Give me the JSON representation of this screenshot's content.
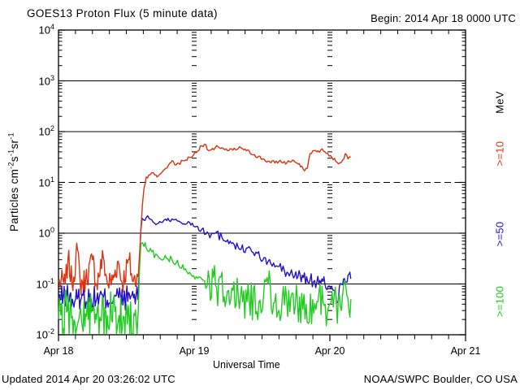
{
  "header": {
    "title": "GOES13 Proton Flux (5 minute data)",
    "begin": "Begin: 2014 Apr 18 0000 UTC"
  },
  "footer": {
    "updated": "Updated 2014 Apr 20 03:26:02 UTC",
    "source": "NOAA/SWPC Boulder, CO USA"
  },
  "colors": {
    "red": "#dd3311",
    "blue": "#2212cc",
    "green": "#21cc21",
    "axis": "#000000",
    "background": "#ffffff"
  },
  "chart_data": {
    "type": "line",
    "title": "GOES13 Proton Flux (5 minute data)",
    "xlabel": "Universal Time",
    "ylabel": "Particles cm-2 s-1 sr-1",
    "x_axis": {
      "label": "Universal Time",
      "start": "2014 Apr 18 0000 UTC",
      "range_days": [
        0,
        3
      ],
      "day_labels": [
        "Apr 18",
        "Apr 19",
        "Apr 20",
        "Apr 21"
      ],
      "minor_tick_hours": 3
    },
    "y_axis": {
      "scale": "log",
      "limits": [
        0.01,
        10000
      ],
      "exponents": [
        4,
        3,
        2,
        1,
        0,
        -1,
        -2
      ],
      "base": "10",
      "label_parts": [
        {
          "text": "Particles  cm",
          "sup": "-2"
        },
        {
          "text": "s",
          "sup": "-1"
        },
        {
          "text": "sr",
          "sup": "-1"
        }
      ],
      "unit_right": "MeV"
    },
    "gridlines": {
      "solid": [
        1000,
        100,
        1,
        0.1
      ],
      "dashed": [
        10
      ]
    },
    "series": [
      {
        "name": "protons >=10 MeV",
        "label": ">=10",
        "color": "#dd3311",
        "seed": 7,
        "zorder": 3,
        "segments": [
          {
            "amp": 0.26,
            "step": 0.006,
            "pts": [
              [
                0,
                0.11
              ],
              [
                0.05,
                0.1
              ],
              [
                0.07,
                0.32
              ],
              [
                0.1,
                0.1
              ],
              [
                0.14,
                0.48
              ],
              [
                0.16,
                0.1
              ],
              [
                0.2,
                0.12
              ],
              [
                0.25,
                0.3
              ],
              [
                0.28,
                0.1
              ],
              [
                0.33,
                0.34
              ],
              [
                0.36,
                0.1
              ],
              [
                0.4,
                0.12
              ],
              [
                0.44,
                0.28
              ],
              [
                0.47,
                0.1
              ],
              [
                0.52,
                0.3
              ],
              [
                0.55,
                0.11
              ],
              [
                0.585,
                0.14
              ]
            ]
          },
          {
            "amp": 0.04,
            "step": 0.01,
            "pts": [
              [
                0.588,
                0.15
              ],
              [
                0.6,
                0.5
              ],
              [
                0.61,
                1.6
              ],
              [
                0.62,
                4
              ],
              [
                0.63,
                7.5
              ],
              [
                0.64,
                10
              ],
              [
                0.647,
                12.8
              ],
              [
                0.665,
                14
              ],
              [
                0.687,
                15.5
              ],
              [
                0.71,
                14
              ],
              [
                0.726,
                12.8
              ],
              [
                0.746,
                14.5
              ],
              [
                0.766,
                16.4
              ],
              [
                0.79,
                19
              ],
              [
                0.807,
                21
              ],
              [
                0.82,
                24
              ],
              [
                0.836,
                26.7
              ],
              [
                0.856,
                22.4
              ],
              [
                0.886,
                23.9
              ],
              [
                0.926,
                26.7
              ],
              [
                0.966,
                31
              ],
              [
                1.016,
                38.5
              ],
              [
                1.046,
                52
              ],
              [
                1.076,
                56
              ],
              [
                1.106,
                42
              ],
              [
                1.145,
                44
              ],
              [
                1.175,
                51
              ],
              [
                1.205,
                48
              ],
              [
                1.246,
                42
              ],
              [
                1.305,
                44
              ],
              [
                1.345,
                48
              ],
              [
                1.385,
                42
              ],
              [
                1.445,
                35
              ],
              [
                1.505,
                29
              ],
              [
                1.565,
                24.4
              ],
              [
                1.625,
                26
              ],
              [
                1.684,
                24.4
              ],
              [
                1.725,
                27.5
              ],
              [
                1.765,
                23
              ],
              [
                1.804,
                18
              ],
              [
                1.834,
                19
              ],
              [
                1.854,
                37
              ],
              [
                1.874,
                42
              ],
              [
                1.904,
                40
              ],
              [
                1.934,
                44
              ],
              [
                1.964,
                40
              ],
              [
                1.994,
                33
              ],
              [
                2.014,
                31.6
              ],
              [
                2.044,
                26
              ],
              [
                2.074,
                24.4
              ],
              [
                2.094,
                27.5
              ],
              [
                2.114,
                37
              ],
              [
                2.134,
                29
              ],
              [
                2.154,
                31.6
              ]
            ]
          }
        ]
      },
      {
        "name": "protons >=50 MeV",
        "label": ">=50",
        "color": "#2212cc",
        "seed": 13,
        "zorder": 1,
        "segments": [
          {
            "amp": 0.24,
            "step": 0.006,
            "pts": [
              [
                0,
                0.05
              ],
              [
                0.06,
                0.06
              ],
              [
                0.12,
                0.045
              ],
              [
                0.18,
                0.06
              ],
              [
                0.24,
                0.05
              ],
              [
                0.3,
                0.055
              ],
              [
                0.36,
                0.048
              ],
              [
                0.42,
                0.058
              ],
              [
                0.48,
                0.05
              ],
              [
                0.54,
                0.06
              ],
              [
                0.585,
                0.05
              ]
            ]
          },
          {
            "amp": 0.05,
            "step": 0.01,
            "pts": [
              [
                0.588,
                0.06
              ],
              [
                0.597,
                0.3
              ],
              [
                0.607,
                1.2
              ],
              [
                0.617,
                1.96
              ],
              [
                0.63,
                1.8
              ],
              [
                0.645,
                2.0
              ],
              [
                0.657,
                2.2
              ],
              [
                0.672,
                1.9
              ],
              [
                0.687,
                1.84
              ],
              [
                0.71,
                1.55
              ],
              [
                0.726,
                1.53
              ],
              [
                0.746,
                1.7
              ],
              [
                0.766,
                1.63
              ],
              [
                0.79,
                1.9
              ],
              [
                0.807,
                1.96
              ],
              [
                0.826,
                1.7
              ],
              [
                0.846,
                1.84
              ],
              [
                0.886,
                1.73
              ],
              [
                0.926,
                1.53
              ],
              [
                0.966,
                1.63
              ],
              [
                1.016,
                1.36
              ]
            ]
          },
          {
            "amp": 0.09,
            "step": 0.01,
            "pts": [
              [
                1.016,
                1.36
              ],
              [
                1.056,
                1.2
              ],
              [
                1.096,
                1.06
              ],
              [
                1.125,
                0.94
              ],
              [
                1.155,
                1.0
              ],
              [
                1.205,
                0.83
              ],
              [
                1.246,
                0.74
              ],
              [
                1.285,
                0.65
              ],
              [
                1.345,
                0.48
              ],
              [
                1.385,
                0.51
              ],
              [
                1.425,
                0.43
              ],
              [
                1.465,
                0.4
              ],
              [
                1.505,
                0.29
              ],
              [
                1.545,
                0.28
              ],
              [
                1.565,
                0.25
              ],
              [
                1.625,
                0.22
              ],
              [
                1.665,
                0.18
              ]
            ]
          },
          {
            "amp": 0.15,
            "step": 0.008,
            "pts": [
              [
                1.665,
                0.18
              ],
              [
                1.684,
                0.17
              ],
              [
                1.725,
                0.15
              ],
              [
                1.765,
                0.14
              ],
              [
                1.804,
                0.134
              ],
              [
                1.854,
                0.118
              ],
              [
                1.904,
                0.11
              ],
              [
                1.934,
                0.104
              ],
              [
                1.964,
                0.097
              ],
              [
                1.994,
                0.092
              ],
              [
                2.014,
                0.09
              ],
              [
                2.035,
                0.072
              ],
              [
                2.05,
                0.042
              ],
              [
                2.07,
                0.09
              ],
              [
                2.094,
                0.097
              ],
              [
                2.114,
                0.11
              ],
              [
                2.134,
                0.15
              ],
              [
                2.154,
                0.126
              ]
            ]
          }
        ]
      },
      {
        "name": "protons >=100 MeV",
        "label": ">=100",
        "color": "#21cc21",
        "seed": 29,
        "zorder": 2,
        "segments": [
          {
            "amp": 0.5,
            "step": 0.006,
            "pts": [
              [
                0,
                0.02
              ],
              [
                0.06,
                0.028
              ],
              [
                0.12,
                0.018
              ],
              [
                0.2,
                0.026
              ],
              [
                0.28,
                0.02
              ],
              [
                0.36,
                0.024
              ],
              [
                0.44,
                0.019
              ],
              [
                0.52,
                0.024
              ],
              [
                0.585,
                0.022
              ]
            ]
          },
          {
            "amp": 0.1,
            "step": 0.01,
            "pts": [
              [
                0.588,
                0.03
              ],
              [
                0.597,
                0.2
              ],
              [
                0.607,
                0.61
              ],
              [
                0.63,
                0.55
              ],
              [
                0.647,
                0.51
              ],
              [
                0.687,
                0.43
              ],
              [
                0.726,
                0.375
              ],
              [
                0.766,
                0.295
              ],
              [
                0.807,
                0.31
              ],
              [
                0.846,
                0.26
              ],
              [
                0.886,
                0.23
              ],
              [
                0.926,
                0.19
              ],
              [
                0.966,
                0.17
              ],
              [
                1.016,
                0.14
              ],
              [
                1.056,
                0.125
              ],
              [
                1.096,
                0.092
              ]
            ]
          },
          {
            "amp": 0.42,
            "step": 0.008,
            "pts": [
              [
                1.096,
                0.092
              ],
              [
                1.165,
                0.086
              ],
              [
                1.245,
                0.072
              ],
              [
                1.325,
                0.056
              ],
              [
                1.405,
                0.05
              ],
              [
                1.485,
                0.048
              ],
              [
                1.545,
                0.1
              ],
              [
                1.585,
                0.042
              ],
              [
                1.665,
                0.039
              ],
              [
                1.745,
                0.036
              ],
              [
                1.825,
                0.04
              ],
              [
                1.905,
                0.045
              ],
              [
                1.965,
                0.04
              ],
              [
                2.025,
                0.035
              ],
              [
                2.085,
                0.03
              ],
              [
                2.125,
                0.06
              ],
              [
                2.155,
                0.05
              ]
            ]
          }
        ]
      }
    ]
  }
}
